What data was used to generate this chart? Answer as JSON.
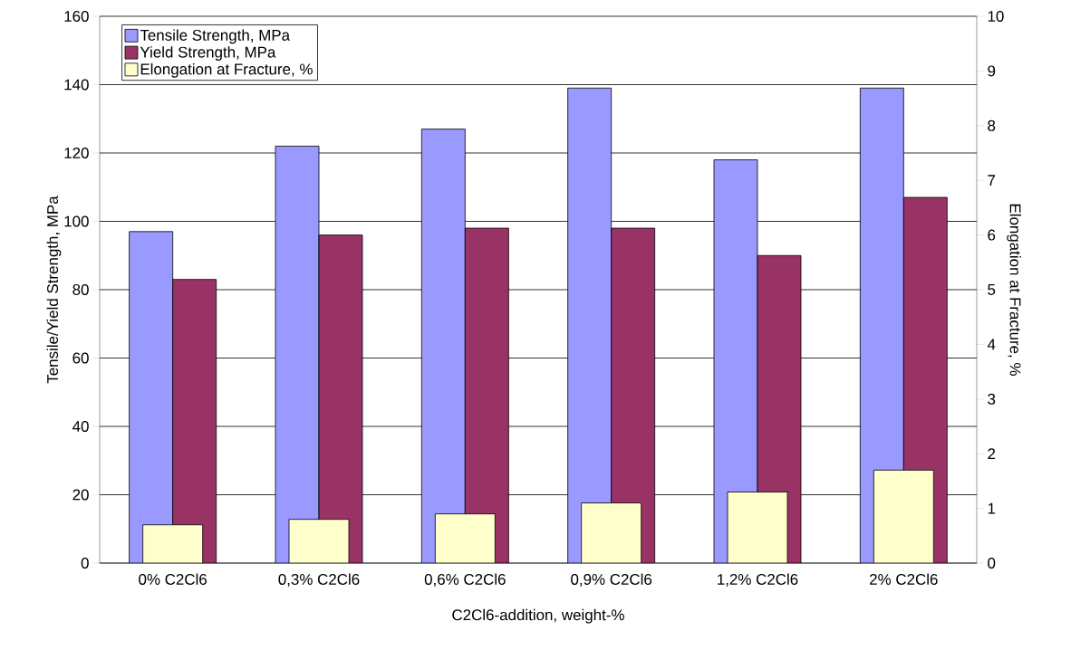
{
  "chart_data": {
    "type": "bar",
    "categories": [
      "0% C2Cl6",
      "0,3% C2Cl6",
      "0,6% C2Cl6",
      "0,9% C2Cl6",
      "1,2% C2Cl6",
      "2% C2Cl6"
    ],
    "xlabel": "C2Cl6-addition, weight-%",
    "ylabel": "Tensile/Yield Strength, MPa",
    "y2label": "Elongation at Fracture, %",
    "series": [
      {
        "name": "Tensile Strength, MPa",
        "color": "#9999ff",
        "values": [
          97,
          122,
          127,
          139,
          118,
          139
        ]
      },
      {
        "name": "Yield Strength, MPa",
        "color": "#993366",
        "values": [
          83,
          96,
          98,
          98,
          90,
          107
        ]
      },
      {
        "name": "Elongation at Fracture, %",
        "color": "#ffffcc",
        "axis": "y2",
        "values": [
          0.7,
          0.8,
          0.9,
          1.1,
          1.3,
          1.7
        ]
      }
    ],
    "ylim": [
      0,
      160
    ],
    "yticks": [
      0,
      20,
      40,
      60,
      80,
      100,
      120,
      140,
      160
    ],
    "y2lim": [
      0,
      10
    ],
    "y2ticks": [
      0,
      1,
      2,
      3,
      4,
      5,
      6,
      7,
      8,
      9,
      10
    ],
    "grid": "y",
    "legend": "top left"
  }
}
